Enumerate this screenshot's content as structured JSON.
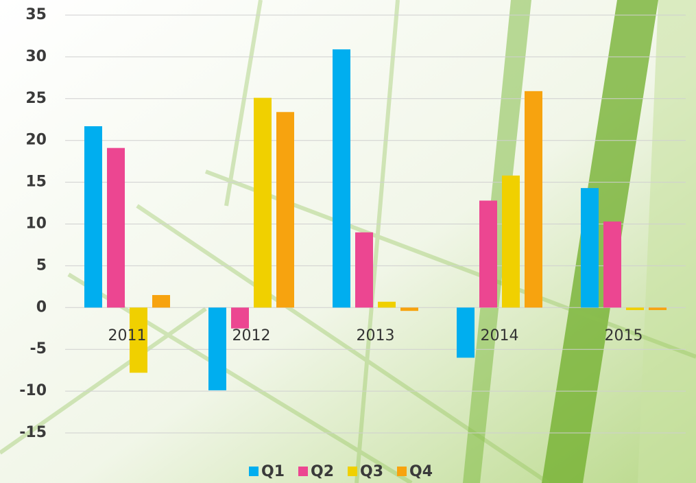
{
  "chart_data": {
    "type": "bar",
    "categories": [
      "2011",
      "2012",
      "2013",
      "2014",
      "2015"
    ],
    "series": [
      {
        "name": "Q1",
        "color": "#00aeef",
        "values": [
          21.7,
          -9.9,
          30.9,
          -6.0,
          14.3
        ]
      },
      {
        "name": "Q2",
        "color": "#ec4691",
        "values": [
          19.1,
          -2.5,
          9.0,
          12.8,
          10.3
        ]
      },
      {
        "name": "Q3",
        "color": "#f0d000",
        "values": [
          -7.8,
          25.1,
          0.7,
          15.8,
          -0.3
        ]
      },
      {
        "name": "Q4",
        "color": "#f7a30f",
        "values": [
          1.5,
          23.4,
          -0.4,
          25.9,
          -0.3
        ]
      }
    ],
    "ylim": [
      -15,
      35
    ],
    "yticks": [
      -15,
      -10,
      -5,
      0,
      5,
      10,
      15,
      20,
      25,
      30,
      35
    ],
    "grid": true
  }
}
